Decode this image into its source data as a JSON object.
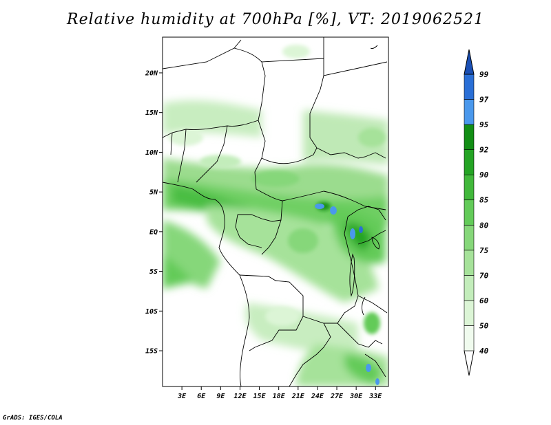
{
  "title": "Relative humidity at 700hPa [%], VT: 2019062521",
  "footer": "GrADS: IGES/COLA",
  "y_axis": {
    "labels": [
      "20N",
      "15N",
      "10N",
      "5N",
      "EQ",
      "5S",
      "10S",
      "15S"
    ],
    "values": [
      20,
      15,
      10,
      5,
      0,
      -5,
      -10,
      -15
    ]
  },
  "x_axis": {
    "labels": [
      "3E",
      "6E",
      "9E",
      "12E",
      "15E",
      "18E",
      "21E",
      "24E",
      "27E",
      "30E",
      "33E"
    ],
    "values": [
      3,
      6,
      9,
      12,
      15,
      18,
      21,
      24,
      27,
      30,
      33
    ]
  },
  "colorbar": {
    "levels": [
      {
        "label": "40",
        "color": "#f0fbee"
      },
      {
        "label": "50",
        "color": "#dcf5d6"
      },
      {
        "label": "60",
        "color": "#c3edbb"
      },
      {
        "label": "70",
        "color": "#a6e29a"
      },
      {
        "label": "75",
        "color": "#86d77a"
      },
      {
        "label": "80",
        "color": "#63cb59"
      },
      {
        "label": "85",
        "color": "#41b83b"
      },
      {
        "label": "90",
        "color": "#24a424"
      },
      {
        "label": "92",
        "color": "#128e15"
      },
      {
        "label": "95",
        "color": "#4a98ec"
      },
      {
        "label": "97",
        "color": "#2a6fd6"
      },
      {
        "label": "99",
        "color": "#1a4fb4"
      }
    ]
  },
  "map": {
    "lon_range": [
      0,
      35
    ],
    "lat_range": [
      -19.5,
      24.5
    ],
    "ocean_fill": "#ffffff",
    "border_color": "#000000"
  }
}
